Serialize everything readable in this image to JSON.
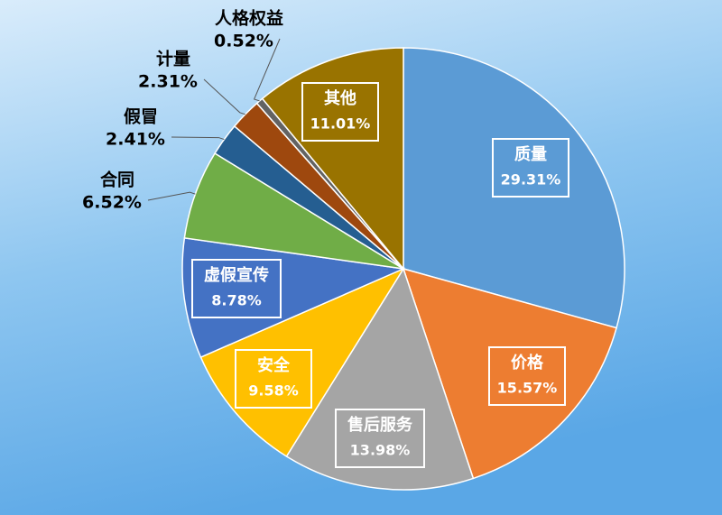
{
  "chart_data": {
    "type": "pie",
    "categories": [
      "质量",
      "价格",
      "售后服务",
      "安全",
      "虚假宣传",
      "合同",
      "假冒",
      "计量",
      "人格权益",
      "其他"
    ],
    "values": [
      29.31,
      15.57,
      13.98,
      9.58,
      8.78,
      6.52,
      2.41,
      2.31,
      0.52,
      11.01
    ],
    "value_labels": [
      "29.31%",
      "15.57%",
      "13.98%",
      "9.58%",
      "8.78%",
      "6.52%",
      "2.41%",
      "2.31%",
      "0.52%",
      "11.01%"
    ],
    "colors": [
      "#5b9bd5",
      "#ed7d31",
      "#a5a5a5",
      "#ffc000",
      "#4472c4",
      "#70ad47",
      "#255e91",
      "#9e480e",
      "#636363",
      "#997300"
    ]
  }
}
